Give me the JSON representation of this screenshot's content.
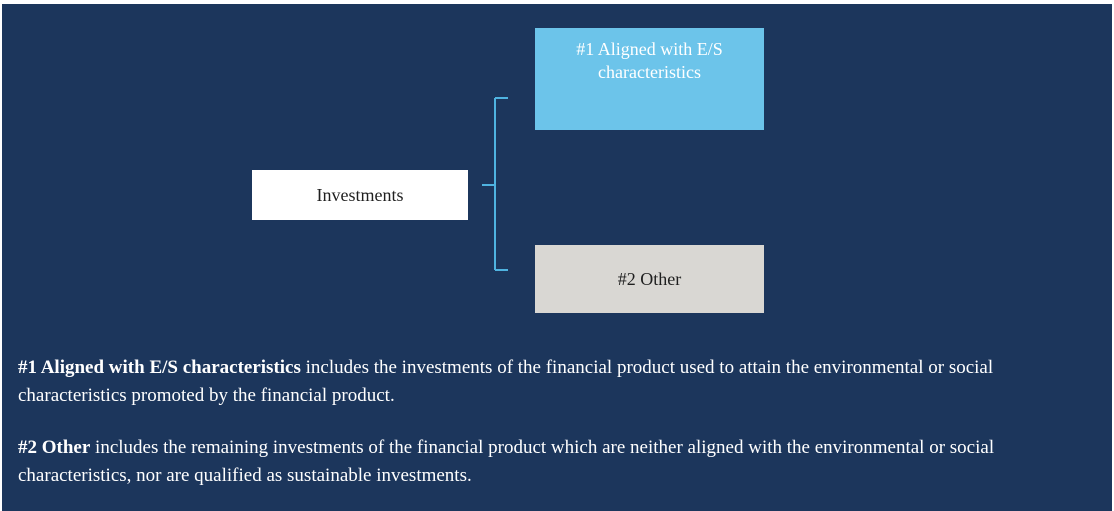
{
  "nodes": [
    {
      "label": "Investments"
    },
    {
      "label": "#1 Aligned with E/S characteristics"
    },
    {
      "label": "#2 Other"
    }
  ],
  "notes": [
    {
      "term": "#1 Aligned with E/S characteristics",
      "text": " includes the investments of the financial product used to attain the environmental or social characteristics promoted by the financial product."
    },
    {
      "term": "#2 Other",
      "text": " includes the remaining investments of the financial product which are neither aligned with the environmental or social characteristics, nor are qualified as sustainable investments."
    }
  ]
}
